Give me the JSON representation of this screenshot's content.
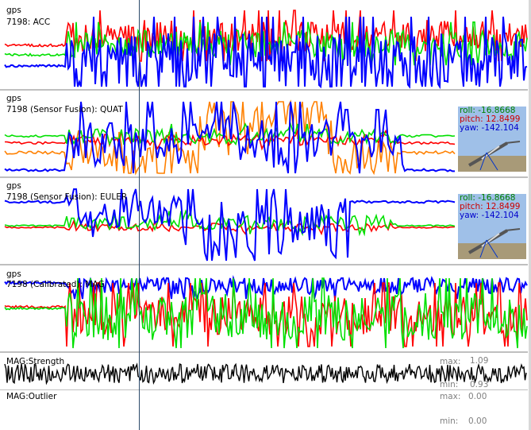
{
  "panels": [
    {
      "gps": "gps",
      "title": "7198: ACC"
    },
    {
      "gps": "gps",
      "title": "7198 (Sensor Fusion): QUAT"
    },
    {
      "gps": "gps",
      "title": "7198 (Sensor Fusion): EULER"
    },
    {
      "gps": "gps",
      "title": "7198 (Calibrated): MAG"
    }
  ],
  "orientation": {
    "roll_label": "roll:",
    "roll": "-16.8668",
    "pitch_label": "pitch:",
    "pitch": "12.8499",
    "yaw_label": "yaw:",
    "yaw": "-142.104"
  },
  "strength": {
    "title": "MAG:Strength",
    "max_label": "max:",
    "max": "1.09",
    "min_label": "min:",
    "min": "0.93"
  },
  "outlier": {
    "title": "MAG:Outlier",
    "max_label": "max:",
    "max": "0.00",
    "min_label": "min:",
    "min": "0.00"
  },
  "colors": {
    "x": "#ff0000",
    "y": "#00e000",
    "z": "#0000ff",
    "w": "#ff8000",
    "gps_bar": "#ff8000",
    "black": "#000000"
  }
}
